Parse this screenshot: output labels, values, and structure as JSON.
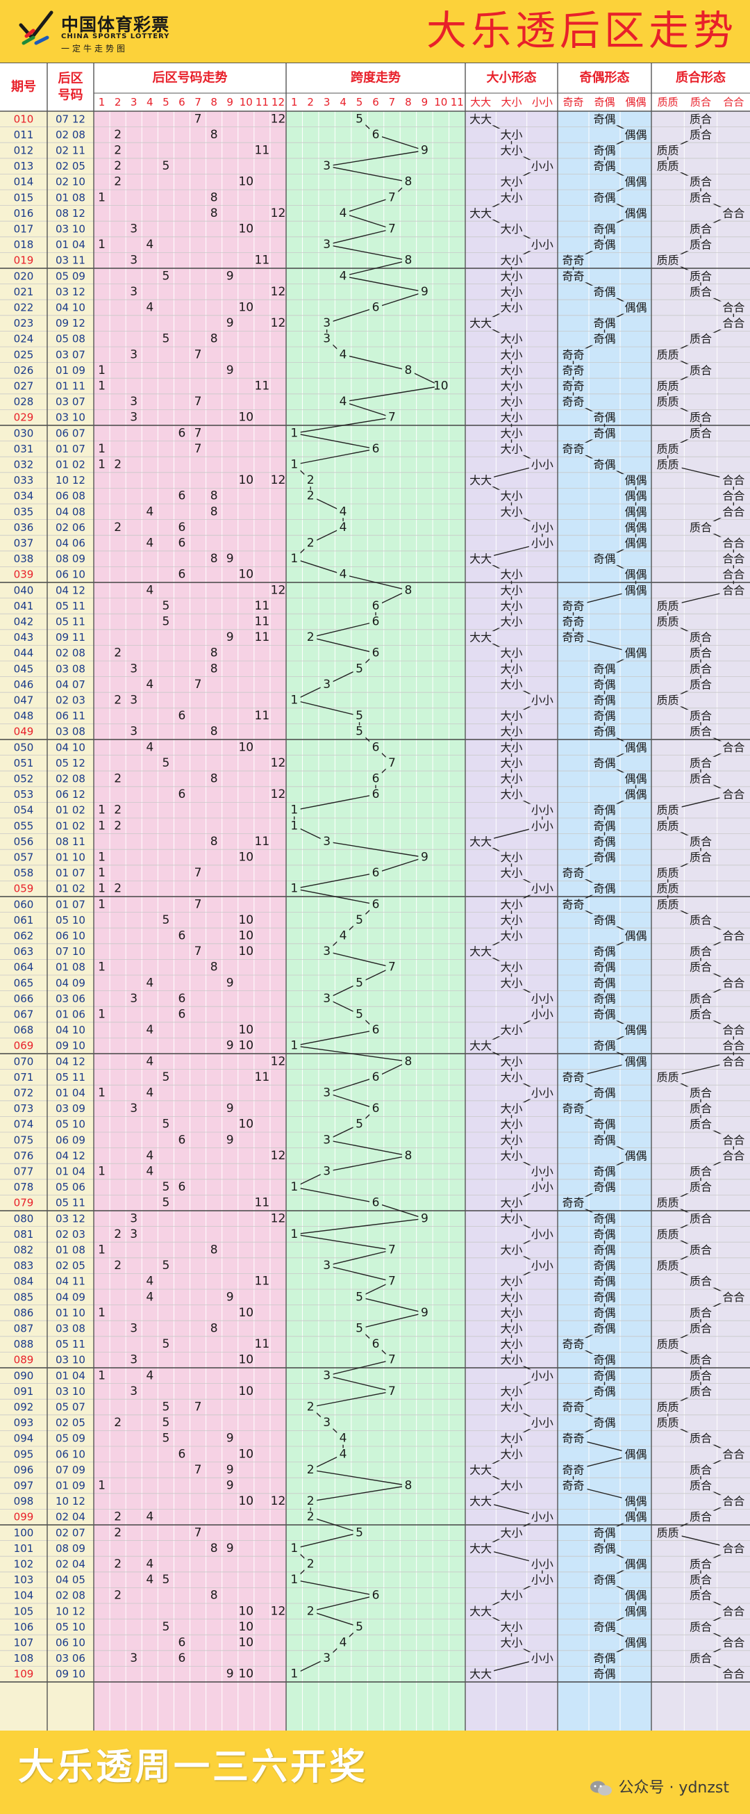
{
  "header": {
    "logo_name": "中国体育彩票",
    "logo_en": "CHINA SPORTS LOTTERY",
    "logo_sub": "一定牛走势图",
    "title": "大乐透后区走势"
  },
  "footer": {
    "text": "大乐透周一三六开奖",
    "watermark": "公众号 · ydnzst"
  },
  "colors": {
    "yellow": "#fcd23a",
    "red": "#e8202a",
    "pink": "#f6d2e4",
    "green": "#cdf5d8",
    "lavender": "#e3ddf2",
    "blue": "#cbe6fa",
    "quality": "#e6e2f0",
    "border": "#555555"
  },
  "chart_data": {
    "type": "table",
    "title": "大乐透后区走势",
    "columns": {
      "period": "期号",
      "back": [
        "后区",
        "号码"
      ],
      "trend": "后区号码走势",
      "span": "跨度走势",
      "bigsmall": "大小形态",
      "oddeven": "奇偶形态",
      "prime": "质合形态"
    },
    "trend_numbers": [
      1,
      2,
      3,
      4,
      5,
      6,
      7,
      8,
      9,
      10,
      11,
      12
    ],
    "span_numbers": [
      1,
      2,
      3,
      4,
      5,
      6,
      7,
      8,
      9,
      10,
      11
    ],
    "bigsmall_subs": [
      "大大",
      "大小",
      "小小"
    ],
    "oddeven_subs": [
      "奇奇",
      "奇偶",
      "偶偶"
    ],
    "prime_subs": [
      "质质",
      "质合",
      "合合"
    ],
    "draws": [
      [
        "010",
        "07 12"
      ],
      [
        "011",
        "02 08"
      ],
      [
        "012",
        "02 11"
      ],
      [
        "013",
        "02 05"
      ],
      [
        "014",
        "02 10"
      ],
      [
        "015",
        "01 08"
      ],
      [
        "016",
        "08 12"
      ],
      [
        "017",
        "03 10"
      ],
      [
        "018",
        "01 04"
      ],
      [
        "019",
        "03 11"
      ],
      [
        "020",
        "05 09"
      ],
      [
        "021",
        "03 12"
      ],
      [
        "022",
        "04 10"
      ],
      [
        "023",
        "09 12"
      ],
      [
        "024",
        "05 08"
      ],
      [
        "025",
        "03 07"
      ],
      [
        "026",
        "01 09"
      ],
      [
        "027",
        "01 11"
      ],
      [
        "028",
        "03 07"
      ],
      [
        "029",
        "03 10"
      ],
      [
        "030",
        "06 07"
      ],
      [
        "031",
        "01 07"
      ],
      [
        "032",
        "01 02"
      ],
      [
        "033",
        "10 12"
      ],
      [
        "034",
        "06 08"
      ],
      [
        "035",
        "04 08"
      ],
      [
        "036",
        "02 06"
      ],
      [
        "037",
        "04 06"
      ],
      [
        "038",
        "08 09"
      ],
      [
        "039",
        "06 10"
      ],
      [
        "040",
        "04 12"
      ],
      [
        "041",
        "05 11"
      ],
      [
        "042",
        "05 11"
      ],
      [
        "043",
        "09 11"
      ],
      [
        "044",
        "02 08"
      ],
      [
        "045",
        "03 08"
      ],
      [
        "046",
        "04 07"
      ],
      [
        "047",
        "02 03"
      ],
      [
        "048",
        "06 11"
      ],
      [
        "049",
        "03 08"
      ],
      [
        "050",
        "04 10"
      ],
      [
        "051",
        "05 12"
      ],
      [
        "052",
        "02 08"
      ],
      [
        "053",
        "06 12"
      ],
      [
        "054",
        "01 02"
      ],
      [
        "055",
        "01 02"
      ],
      [
        "056",
        "08 11"
      ],
      [
        "057",
        "01 10"
      ],
      [
        "058",
        "01 07"
      ],
      [
        "059",
        "01 02"
      ],
      [
        "060",
        "01 07"
      ],
      [
        "061",
        "05 10"
      ],
      [
        "062",
        "06 10"
      ],
      [
        "063",
        "07 10"
      ],
      [
        "064",
        "01 08"
      ],
      [
        "065",
        "04 09"
      ],
      [
        "066",
        "03 06"
      ],
      [
        "067",
        "01 06"
      ],
      [
        "068",
        "04 10"
      ],
      [
        "069",
        "09 10"
      ],
      [
        "070",
        "04 12"
      ],
      [
        "071",
        "05 11"
      ],
      [
        "072",
        "01 04"
      ],
      [
        "073",
        "03 09"
      ],
      [
        "074",
        "05 10"
      ],
      [
        "075",
        "06 09"
      ],
      [
        "076",
        "04 12"
      ],
      [
        "077",
        "01 04"
      ],
      [
        "078",
        "05 06"
      ],
      [
        "079",
        "05 11"
      ],
      [
        "080",
        "03 12"
      ],
      [
        "081",
        "02 03"
      ],
      [
        "082",
        "01 08"
      ],
      [
        "083",
        "02 05"
      ],
      [
        "084",
        "04 11"
      ],
      [
        "085",
        "04 09"
      ],
      [
        "086",
        "01 10"
      ],
      [
        "087",
        "03 08"
      ],
      [
        "088",
        "05 11"
      ],
      [
        "089",
        "03 10"
      ],
      [
        "090",
        "01 04"
      ],
      [
        "091",
        "03 10"
      ],
      [
        "092",
        "05 07"
      ],
      [
        "093",
        "02 05"
      ],
      [
        "094",
        "05 09"
      ],
      [
        "095",
        "06 10"
      ],
      [
        "096",
        "07 09"
      ],
      [
        "097",
        "01 09"
      ],
      [
        "098",
        "10 12"
      ],
      [
        "099",
        "02 04"
      ],
      [
        "100",
        "02 07"
      ],
      [
        "101",
        "08 09"
      ],
      [
        "102",
        "02 04"
      ],
      [
        "103",
        "04 05"
      ],
      [
        "104",
        "02 08"
      ],
      [
        "105",
        "10 12"
      ],
      [
        "106",
        "05 10"
      ],
      [
        "107",
        "06 10"
      ],
      [
        "108",
        "03 06"
      ],
      [
        "109",
        "09 10"
      ]
    ]
  }
}
